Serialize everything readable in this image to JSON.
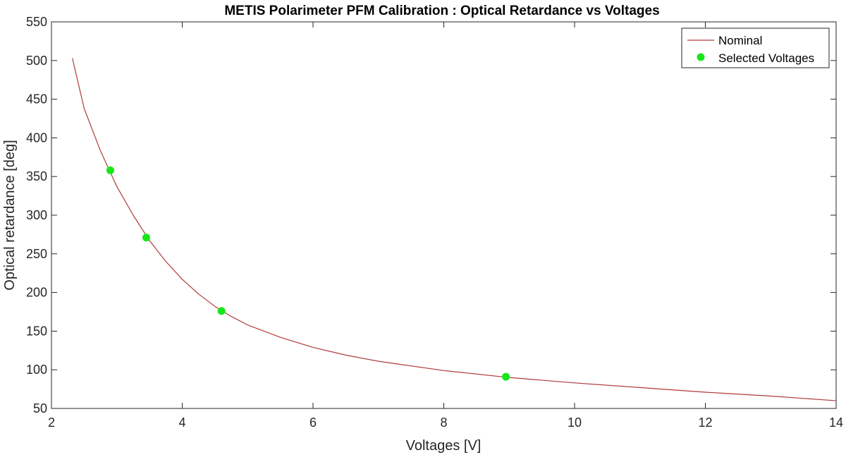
{
  "chart_data": {
    "type": "line",
    "title": "METIS Polarimeter PFM Calibration : Optical Retardance vs Voltages",
    "xlabel": "Voltages [V]",
    "ylabel": "Optical retardance [deg]",
    "xlim": [
      2,
      14
    ],
    "ylim": [
      50,
      550
    ],
    "xticks": [
      2,
      4,
      6,
      8,
      10,
      12,
      14
    ],
    "yticks": [
      50,
      100,
      150,
      200,
      250,
      300,
      350,
      400,
      450,
      500,
      550
    ],
    "grid": false,
    "legend_position": "top-right",
    "series": [
      {
        "name": "Nominal",
        "kind": "line",
        "color": "#b03a3a",
        "x": [
          2.32,
          2.5,
          2.75,
          3.0,
          3.25,
          3.5,
          3.75,
          4.0,
          4.25,
          4.5,
          4.75,
          5.0,
          5.5,
          6.0,
          6.5,
          7.0,
          8.0,
          9.0,
          10.0,
          11.0,
          12.0,
          13.0,
          14.0
        ],
        "y": [
          503,
          438,
          383,
          337,
          300,
          267,
          240,
          217,
          198,
          182,
          169,
          158,
          142,
          129,
          119,
          111,
          99,
          90,
          83,
          77,
          71,
          66,
          60
        ]
      },
      {
        "name": "Selected Voltages",
        "kind": "scatter",
        "color": "#19e619",
        "x": [
          2.9,
          3.45,
          4.6,
          8.95
        ],
        "y": [
          358,
          271,
          176,
          91
        ]
      }
    ]
  }
}
